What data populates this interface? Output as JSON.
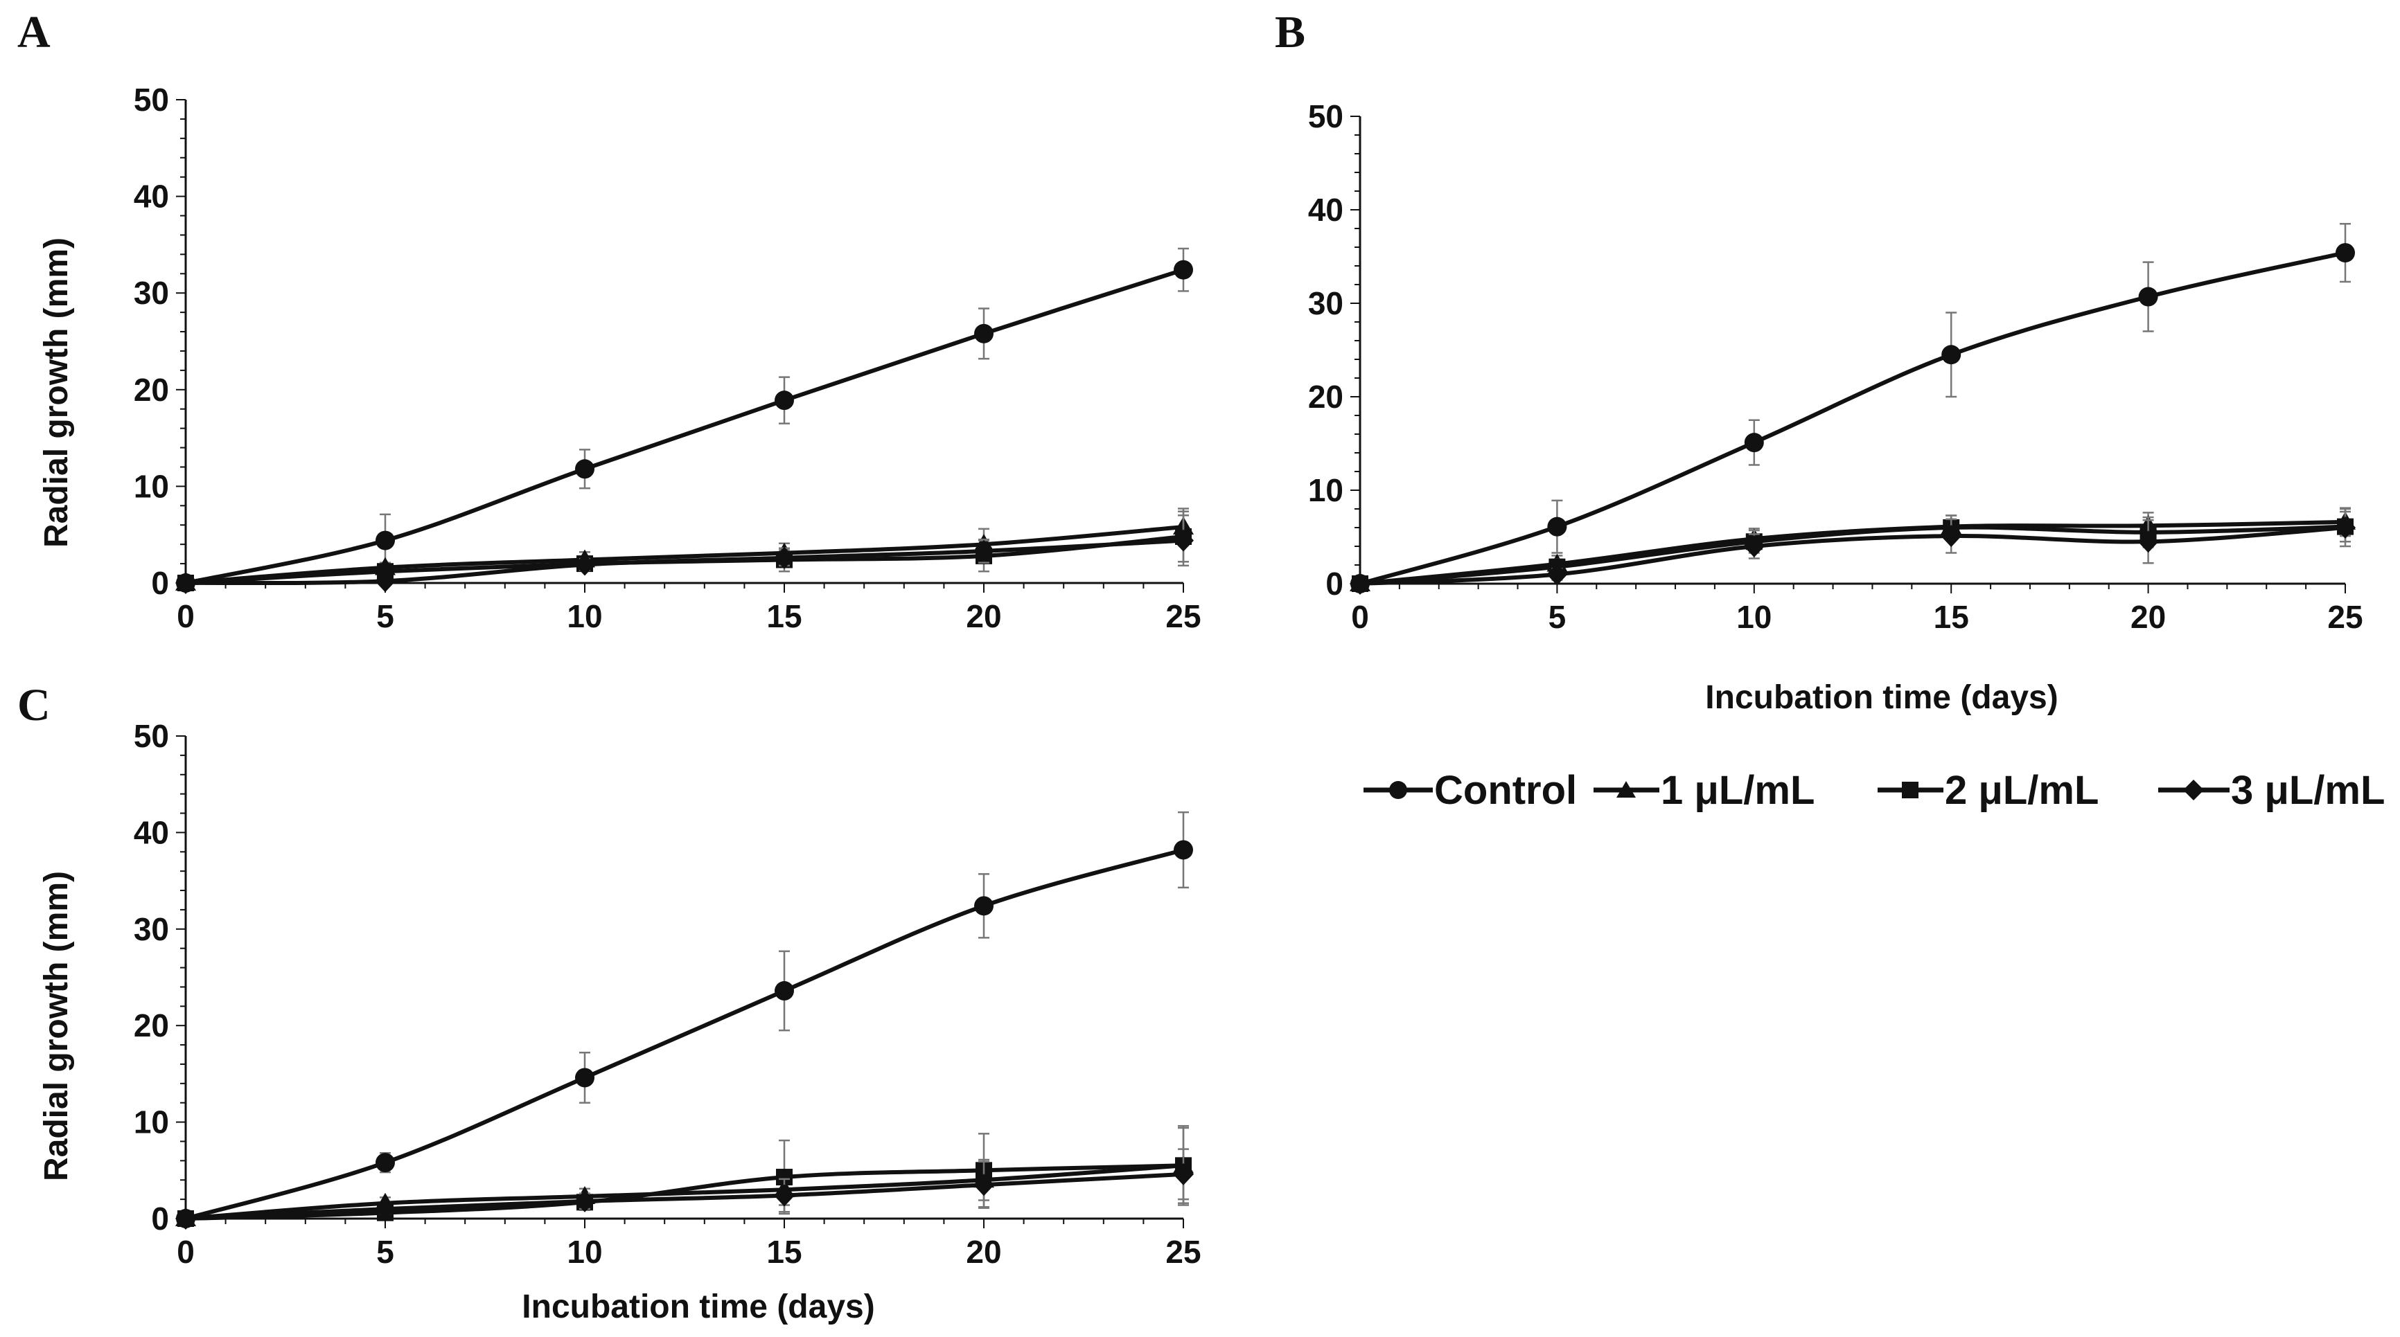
{
  "legend": {
    "entries": [
      {
        "label": "Control",
        "marker": "circle"
      },
      {
        "label": "1 μL/mL",
        "marker": "triangle"
      },
      {
        "label": "2 μL/mL",
        "marker": "square"
      },
      {
        "label": "3 μL/mL",
        "marker": "diamond"
      }
    ]
  },
  "chart_data": [
    {
      "panel": "A",
      "type": "line",
      "title": "",
      "xlabel": "",
      "ylabel": "Radial growth (mm)",
      "xlim": [
        0,
        25
      ],
      "ylim": [
        0,
        50
      ],
      "xticks": [
        0,
        5,
        10,
        15,
        20,
        25
      ],
      "yticks": [
        0,
        10,
        20,
        30,
        40,
        50
      ],
      "grid": false,
      "x": [
        0,
        5,
        10,
        15,
        20,
        25
      ],
      "series": [
        {
          "name": "Control",
          "marker": "circle",
          "values": [
            0,
            4.4,
            11.8,
            18.9,
            25.8,
            32.4
          ],
          "errors": [
            0,
            2.7,
            2.0,
            2.4,
            2.6,
            2.2
          ]
        },
        {
          "name": "1 μL/mL",
          "marker": "triangle",
          "values": [
            0,
            1.6,
            2.4,
            3.1,
            4.0,
            5.8
          ],
          "errors": [
            0,
            0.5,
            0.8,
            1.0,
            1.6,
            1.9
          ]
        },
        {
          "name": "2 μL/mL",
          "marker": "square",
          "values": [
            0,
            1.2,
            2.0,
            2.4,
            2.8,
            4.8
          ],
          "errors": [
            0,
            0.4,
            0.6,
            1.2,
            1.6,
            2.6
          ]
        },
        {
          "name": "3 μL/mL",
          "marker": "diamond",
          "values": [
            0,
            0.2,
            1.9,
            2.6,
            3.3,
            4.4
          ],
          "errors": [
            0,
            0.3,
            0.6,
            0.8,
            1.2,
            2.6
          ]
        }
      ]
    },
    {
      "panel": "B",
      "type": "line",
      "title": "",
      "xlabel": "Incubation time (days)",
      "ylabel": "",
      "xlim": [
        0,
        25
      ],
      "ylim": [
        0,
        50
      ],
      "xticks": [
        0,
        5,
        10,
        15,
        20,
        25
      ],
      "yticks": [
        0,
        10,
        20,
        30,
        40,
        50
      ],
      "grid": false,
      "x": [
        0,
        5,
        10,
        15,
        20,
        25
      ],
      "series": [
        {
          "name": "Control",
          "marker": "circle",
          "values": [
            0,
            6.1,
            15.1,
            24.5,
            30.7,
            35.4
          ],
          "errors": [
            0,
            2.8,
            2.4,
            4.5,
            3.7,
            3.1
          ]
        },
        {
          "name": "1 μL/mL",
          "marker": "triangle",
          "values": [
            0,
            2.1,
            4.8,
            6.1,
            6.2,
            6.6
          ],
          "errors": [
            0,
            0.9,
            1.1,
            1.2,
            1.4,
            1.5
          ]
        },
        {
          "name": "2 μL/mL",
          "marker": "square",
          "values": [
            0,
            1.8,
            4.5,
            6.0,
            5.5,
            6.1
          ],
          "errors": [
            0,
            0.8,
            1.2,
            1.3,
            1.6,
            1.6
          ]
        },
        {
          "name": "3 μL/mL",
          "marker": "diamond",
          "values": [
            0,
            1.0,
            4.0,
            5.1,
            4.5,
            6.0
          ],
          "errors": [
            0,
            0.6,
            1.3,
            1.8,
            2.3,
            2.0
          ]
        }
      ]
    },
    {
      "panel": "C",
      "type": "line",
      "title": "",
      "xlabel": "Incubation time (days)",
      "ylabel": "Radial growth (mm)",
      "xlim": [
        0,
        25
      ],
      "ylim": [
        0,
        50
      ],
      "xticks": [
        0,
        5,
        10,
        15,
        20,
        25
      ],
      "yticks": [
        0,
        10,
        20,
        30,
        40,
        50
      ],
      "grid": false,
      "x": [
        0,
        5,
        10,
        15,
        20,
        25
      ],
      "series": [
        {
          "name": "Control",
          "marker": "circle",
          "values": [
            0,
            5.8,
            14.6,
            23.6,
            32.4,
            38.2
          ],
          "errors": [
            0,
            1.0,
            2.6,
            4.1,
            3.3,
            3.9
          ]
        },
        {
          "name": "1 μL/mL",
          "marker": "triangle",
          "values": [
            0,
            1.6,
            2.3,
            3.0,
            4.0,
            5.5
          ],
          "errors": [
            0,
            0.6,
            0.8,
            1.6,
            2.1,
            3.9
          ]
        },
        {
          "name": "2 μL/mL",
          "marker": "square",
          "values": [
            0,
            0.6,
            1.7,
            4.3,
            5.0,
            5.5
          ],
          "errors": [
            0,
            0.5,
            0.8,
            3.8,
            3.8,
            4.1
          ]
        },
        {
          "name": "3 μL/mL",
          "marker": "diamond",
          "values": [
            0,
            1.0,
            1.8,
            2.4,
            3.5,
            4.6
          ],
          "errors": [
            0,
            0.5,
            0.8,
            1.7,
            2.4,
            2.6
          ]
        }
      ]
    }
  ]
}
